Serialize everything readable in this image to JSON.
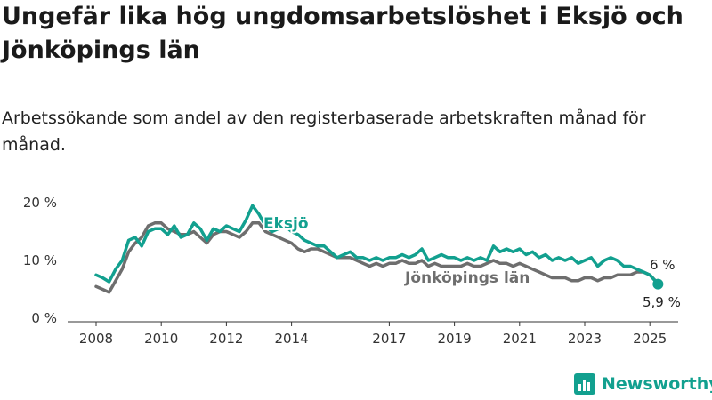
{
  "title": "Ungefär lika hög ungdomsarbetslöshet i Eksjö och Jönköpings län",
  "subtitle": "Arbetssökande som andel av den registerbaserade arbetskraften månad för månad.",
  "brand": "Newsworthy",
  "colors": {
    "eksjo": "#12a08f",
    "lan": "#6e6e6e",
    "axis": "#333333",
    "grid": "#cfcfcf"
  },
  "chart_data": {
    "type": "line",
    "ylim": [
      0,
      20
    ],
    "yticks": [
      0,
      10,
      20
    ],
    "ytick_labels": [
      "0 %",
      "10 %",
      "20 %"
    ],
    "xlim": [
      2008,
      2025.5
    ],
    "xticks": [
      2008,
      2010,
      2012,
      2014,
      2017,
      2019,
      2021,
      2023,
      2025
    ],
    "xtick_labels": [
      "2008",
      "2010",
      "2012",
      "2014",
      "2017",
      "2019",
      "2021",
      "2023",
      "2025"
    ],
    "grid": false,
    "series": [
      {
        "name": "Eksjö",
        "color": "#12a08f",
        "x": [
          2008.0,
          2008.2,
          2008.4,
          2008.6,
          2008.8,
          2009.0,
          2009.2,
          2009.4,
          2009.6,
          2009.8,
          2010.0,
          2010.2,
          2010.4,
          2010.6,
          2010.8,
          2011.0,
          2011.2,
          2011.4,
          2011.6,
          2011.8,
          2012.0,
          2012.2,
          2012.4,
          2012.6,
          2012.8,
          2013.0,
          2013.2,
          2013.4,
          2013.6,
          2013.8,
          2014.0,
          2014.2,
          2014.4,
          2014.6,
          2014.8,
          2015.0,
          2015.2,
          2015.4,
          2015.6,
          2015.8,
          2016.0,
          2016.2,
          2016.4,
          2016.6,
          2016.8,
          2017.0,
          2017.2,
          2017.4,
          2017.6,
          2017.8,
          2018.0,
          2018.2,
          2018.4,
          2018.6,
          2018.8,
          2019.0,
          2019.2,
          2019.4,
          2019.6,
          2019.8,
          2020.0,
          2020.2,
          2020.4,
          2020.6,
          2020.8,
          2021.0,
          2021.2,
          2021.4,
          2021.6,
          2021.8,
          2022.0,
          2022.2,
          2022.4,
          2022.6,
          2022.8,
          2023.0,
          2023.2,
          2023.4,
          2023.6,
          2023.8,
          2024.0,
          2024.2,
          2024.4,
          2024.6,
          2024.8,
          2025.0,
          2025.25
        ],
        "y": [
          7.5,
          7.0,
          6.3,
          8.5,
          10.0,
          13.5,
          14.0,
          12.5,
          15.0,
          15.5,
          15.5,
          14.5,
          16.0,
          14.0,
          14.5,
          16.5,
          15.5,
          13.5,
          15.5,
          15.0,
          16.0,
          15.5,
          15.0,
          17.0,
          19.5,
          18.0,
          16.0,
          15.0,
          15.5,
          16.0,
          15.0,
          14.5,
          13.5,
          13.0,
          12.5,
          12.5,
          11.5,
          10.5,
          11.0,
          11.5,
          10.5,
          10.5,
          10.0,
          10.5,
          10.0,
          10.5,
          10.5,
          11.0,
          10.5,
          11.0,
          12.0,
          10.0,
          10.5,
          11.0,
          10.5,
          10.5,
          10.0,
          10.5,
          10.0,
          10.5,
          10.0,
          12.5,
          11.5,
          12.0,
          11.5,
          12.0,
          11.0,
          11.5,
          10.5,
          11.0,
          10.0,
          10.5,
          10.0,
          10.5,
          9.5,
          10.0,
          10.5,
          9.0,
          10.0,
          10.5,
          10.0,
          9.0,
          9.0,
          8.5,
          8.0,
          7.5,
          5.9
        ]
      },
      {
        "name": "Jönköpings län",
        "color": "#6e6e6e",
        "x": [
          2008.0,
          2008.2,
          2008.4,
          2008.6,
          2008.8,
          2009.0,
          2009.2,
          2009.4,
          2009.6,
          2009.8,
          2010.0,
          2010.2,
          2010.4,
          2010.6,
          2010.8,
          2011.0,
          2011.2,
          2011.4,
          2011.6,
          2011.8,
          2012.0,
          2012.2,
          2012.4,
          2012.6,
          2012.8,
          2013.0,
          2013.2,
          2013.4,
          2013.6,
          2013.8,
          2014.0,
          2014.2,
          2014.4,
          2014.6,
          2014.8,
          2015.0,
          2015.2,
          2015.4,
          2015.6,
          2015.8,
          2016.0,
          2016.2,
          2016.4,
          2016.6,
          2016.8,
          2017.0,
          2017.2,
          2017.4,
          2017.6,
          2017.8,
          2018.0,
          2018.2,
          2018.4,
          2018.6,
          2018.8,
          2019.0,
          2019.2,
          2019.4,
          2019.6,
          2019.8,
          2020.0,
          2020.2,
          2020.4,
          2020.6,
          2020.8,
          2021.0,
          2021.2,
          2021.4,
          2021.6,
          2021.8,
          2022.0,
          2022.2,
          2022.4,
          2022.6,
          2022.8,
          2023.0,
          2023.2,
          2023.4,
          2023.6,
          2023.8,
          2024.0,
          2024.2,
          2024.4,
          2024.6,
          2024.8,
          2025.0,
          2025.25
        ],
        "y": [
          5.5,
          5.0,
          4.5,
          6.5,
          8.5,
          11.5,
          13.0,
          14.0,
          16.0,
          16.5,
          16.5,
          15.5,
          15.0,
          14.5,
          14.5,
          15.0,
          14.0,
          13.0,
          14.5,
          15.0,
          15.0,
          14.5,
          14.0,
          15.0,
          16.5,
          16.5,
          15.0,
          14.5,
          14.0,
          13.5,
          13.0,
          12.0,
          11.5,
          12.0,
          12.0,
          11.5,
          11.0,
          10.5,
          10.5,
          10.5,
          10.0,
          9.5,
          9.0,
          9.5,
          9.0,
          9.5,
          9.5,
          10.0,
          9.5,
          9.5,
          10.0,
          9.0,
          9.5,
          9.0,
          9.0,
          9.0,
          9.0,
          9.5,
          9.0,
          9.0,
          9.5,
          10.0,
          9.5,
          9.5,
          9.0,
          9.5,
          9.0,
          8.5,
          8.0,
          7.5,
          7.0,
          7.0,
          7.0,
          6.5,
          6.5,
          7.0,
          7.0,
          6.5,
          7.0,
          7.0,
          7.5,
          7.5,
          7.5,
          8.0,
          8.0,
          7.5,
          6.0
        ]
      }
    ],
    "labels": {
      "eksjo": "Eksjö",
      "lan": "Jönköpings län",
      "end_value_lan": "6 %",
      "end_value_eksjo": "5,9 %"
    }
  }
}
